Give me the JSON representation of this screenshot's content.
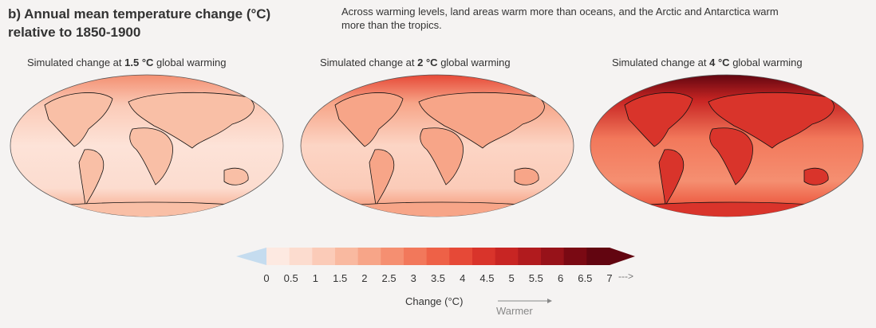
{
  "header": {
    "title": "b) Annual mean temperature change (°C) relative to 1850-1900",
    "subtitle": "Across warming levels, land areas warm more than oceans, and the Arctic and Antarctica warm more than the tropics."
  },
  "panels": [
    {
      "prefix": "Simulated change at ",
      "level": "1.5 °C",
      "suffix": " global warming"
    },
    {
      "prefix": "Simulated change at ",
      "level": "2 °C",
      "suffix": " global warming"
    },
    {
      "prefix": "Simulated change at ",
      "level": "4 °C",
      "suffix": " global warming"
    }
  ],
  "colorbar": {
    "ticks": [
      "0",
      "0.5",
      "1",
      "1.5",
      "2",
      "2.5",
      "3",
      "3.5",
      "4",
      "4.5",
      "5",
      "5.5",
      "6",
      "6.5",
      "7"
    ],
    "more_arrow": "--->",
    "title": "Change (°C)",
    "direction_label": "Warmer",
    "below_zero_color": "#c5dcef",
    "colors": [
      "#fde9e1",
      "#fcdccf",
      "#fbcbb8",
      "#f9b9a0",
      "#f7a588",
      "#f58f71",
      "#f2785b",
      "#ee6147",
      "#e64937",
      "#d9342b",
      "#c82523",
      "#b11b1e",
      "#971219",
      "#7a0913",
      "#620510"
    ]
  }
}
